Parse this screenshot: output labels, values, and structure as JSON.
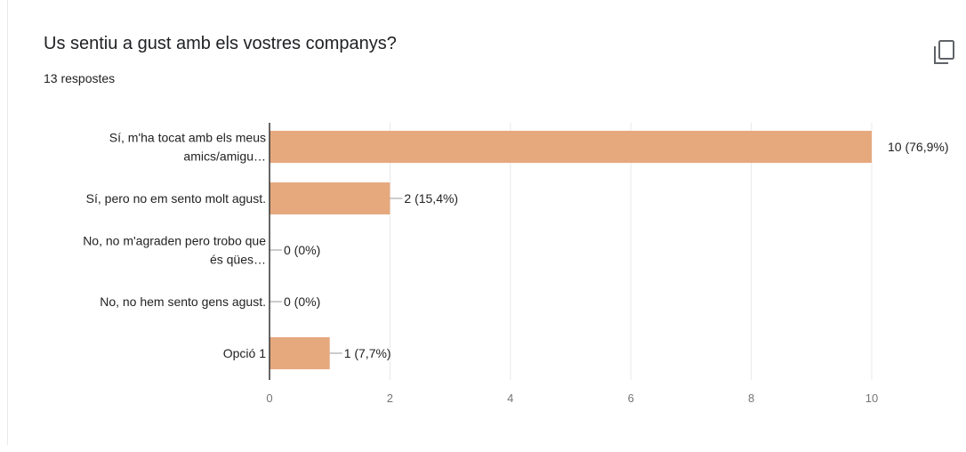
{
  "question": {
    "title": "Us sentiu a gust amb els vostres companys?",
    "responses": "13 respostes"
  },
  "icons": {
    "copy": "copy-icon"
  },
  "colors": {
    "bar": "#e6a97e",
    "grid": "#e8e8e8",
    "axis": "#333333",
    "connector": "#999999"
  },
  "chart_data": {
    "type": "bar",
    "orientation": "horizontal",
    "categories": [
      [
        "Sí, m'ha tocat amb els meus",
        "amics/amigu…"
      ],
      [
        "Sí, pero no em sento molt agust."
      ],
      [
        "No, no m'agraden pero trobo que",
        "és qües…"
      ],
      [
        "No, no hem sento gens agust."
      ],
      [
        "Opció 1"
      ]
    ],
    "values": [
      10,
      2,
      0,
      0,
      1
    ],
    "data_labels": [
      "10 (76,9%)",
      "2 (15,4%)",
      "0 (0%)",
      "0 (0%)",
      "1 (7,7%)"
    ],
    "xlim": [
      0,
      10
    ],
    "xticks": [
      0,
      2,
      4,
      6,
      8,
      10
    ],
    "grid": true
  }
}
